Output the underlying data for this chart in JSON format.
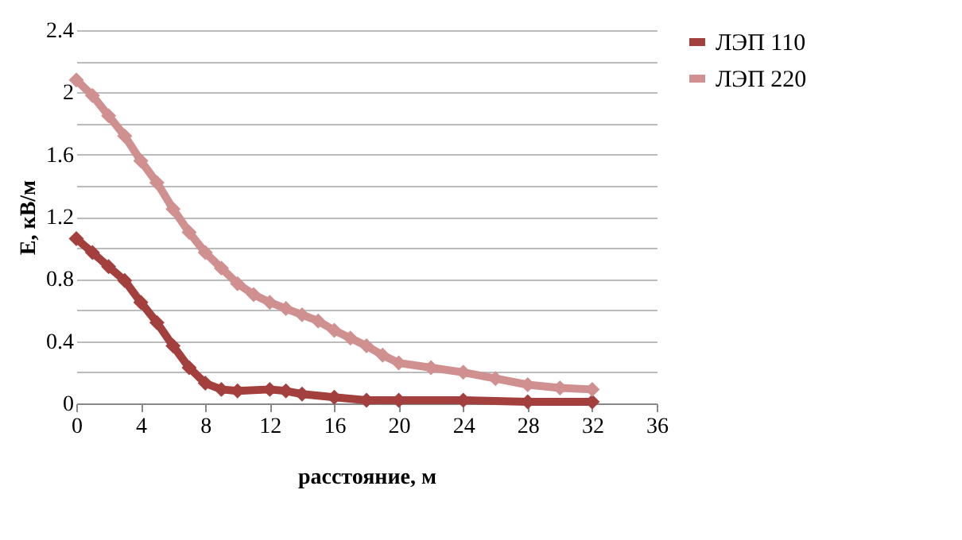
{
  "chart_data": {
    "type": "line",
    "xlabel": "расстояние, м",
    "ylabel": "E, кВ/м",
    "xlim": [
      0,
      36
    ],
    "xticks": [
      0,
      4,
      8,
      12,
      16,
      20,
      24,
      28,
      32,
      36
    ],
    "ylim": [
      0,
      2.4
    ],
    "yticks": [
      0,
      {
        "value": 0.2,
        "label": null
      },
      0.4,
      {
        "value": 0.6,
        "label": null
      },
      0.8,
      {
        "value": 1.0,
        "label": null
      },
      1.2,
      {
        "value": 1.4,
        "label": null
      },
      1.6,
      {
        "value": 1.8,
        "label": null
      },
      2,
      {
        "value": 2.2,
        "label": null
      },
      2.4
    ],
    "grid": "y",
    "legend": "right",
    "marker": "diamond",
    "line_style": "solid",
    "series": [
      {
        "name": "ЛЭП 110",
        "color": "#a33f3d",
        "x": [
          0,
          1,
          2,
          3,
          4,
          5,
          6,
          7,
          8,
          9,
          10,
          12,
          13,
          14,
          16,
          18,
          20,
          24,
          28,
          32
        ],
        "values": [
          1.06,
          0.97,
          0.88,
          0.79,
          0.65,
          0.52,
          0.37,
          0.23,
          0.13,
          0.09,
          0.08,
          0.09,
          0.08,
          0.06,
          0.04,
          0.02,
          0.02,
          0.02,
          0.01,
          0.01
        ]
      },
      {
        "name": "ЛЭП 220",
        "color": "#d09090",
        "x": [
          0,
          1,
          2,
          3,
          4,
          5,
          6,
          7,
          8,
          9,
          10,
          11,
          12,
          13,
          14,
          15,
          16,
          17,
          18,
          19,
          20,
          22,
          24,
          26,
          28,
          30,
          32
        ],
        "values": [
          2.08,
          1.98,
          1.85,
          1.72,
          1.56,
          1.42,
          1.25,
          1.1,
          0.97,
          0.87,
          0.77,
          0.7,
          0.65,
          0.61,
          0.57,
          0.53,
          0.47,
          0.42,
          0.37,
          0.31,
          0.26,
          0.23,
          0.2,
          0.16,
          0.12,
          0.1,
          0.09
        ]
      }
    ]
  }
}
